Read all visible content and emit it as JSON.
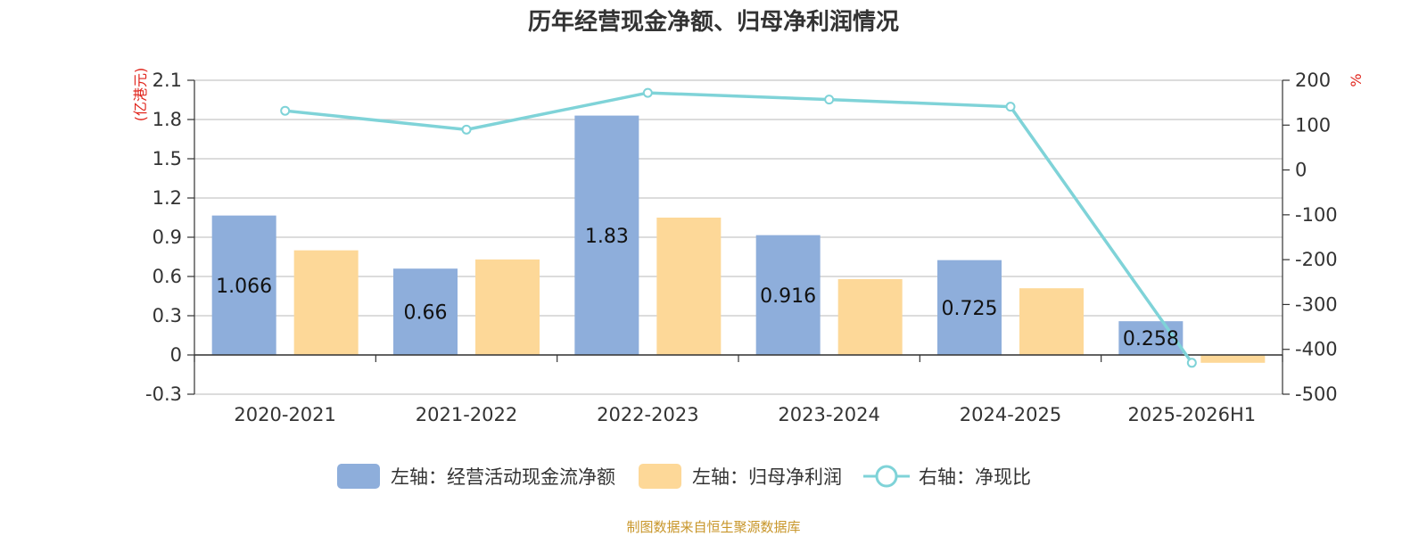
{
  "footer": {
    "source": "制图数据来自恒生聚源数据库"
  },
  "chart_data": {
    "type": "bar",
    "title": "历年经营现金净额、归母净利润情况",
    "categories": [
      "2020-2021",
      "2021-2022",
      "2022-2023",
      "2023-2024",
      "2024-2025",
      "2025-2026H1"
    ],
    "left_axis": {
      "unit": "(亿港元)",
      "ylim": [
        -0.3,
        2.1
      ],
      "ticks": [
        "-0.3",
        "0",
        "0.3",
        "0.6",
        "0.9",
        "1.2",
        "1.5",
        "1.8",
        "2.1"
      ]
    },
    "right_axis": {
      "unit": "%",
      "ylim": [
        -500,
        200
      ],
      "ticks": [
        "-500",
        "-400",
        "-300",
        "-200",
        "-100",
        "0",
        "100",
        "200"
      ]
    },
    "series": [
      {
        "name": "左轴：经营活动现金流净额",
        "type": "bar",
        "axis": "left",
        "color": "#8eaedb",
        "values": [
          1.066,
          0.66,
          1.83,
          0.916,
          0.725,
          0.258
        ],
        "data_labels": [
          "1.066",
          "0.66",
          "1.83",
          "0.916",
          "0.725",
          "0.258"
        ]
      },
      {
        "name": "左轴：归母净利润",
        "type": "bar",
        "axis": "left",
        "color": "#fdd898",
        "values": [
          0.8,
          0.73,
          1.05,
          0.58,
          0.51,
          -0.06
        ]
      },
      {
        "name": "右轴：净现比",
        "type": "line",
        "axis": "right",
        "color": "#7fd3d8",
        "values": [
          132,
          90,
          172,
          157,
          141,
          -430
        ]
      }
    ],
    "grid": true,
    "legend": "bottom"
  }
}
